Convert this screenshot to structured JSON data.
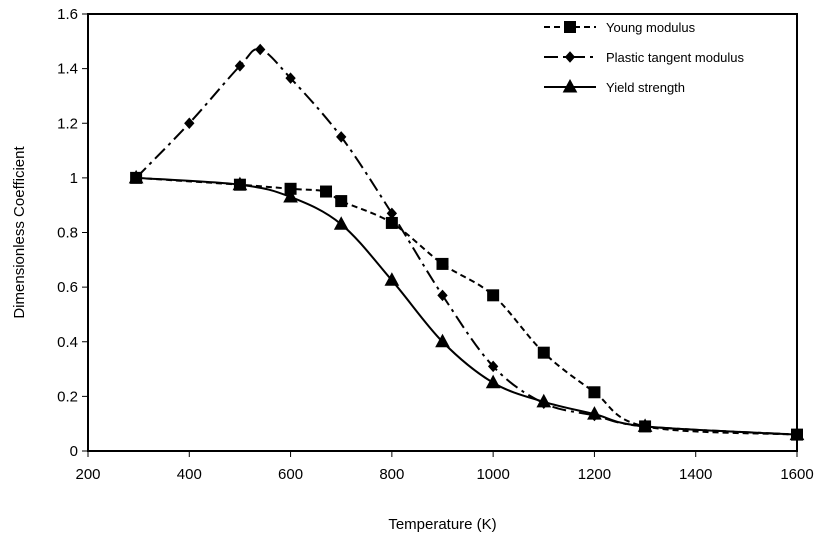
{
  "chart_data": {
    "type": "line",
    "xlabel": "Temperature (K)",
    "ylabel": "Dimensionless Coefficient",
    "xlim": [
      200,
      1600
    ],
    "ylim": [
      0,
      1.6
    ],
    "x_ticks": [
      "200",
      "400",
      "600",
      "800",
      "1000",
      "1200",
      "1400",
      "1600"
    ],
    "y_ticks": [
      "0",
      "0.2",
      "0.4",
      "0.6",
      "0.8",
      "1",
      "1.2",
      "1.4",
      "1.6"
    ],
    "grid": false,
    "legend_position": "top-right",
    "series": [
      {
        "name": "Young modulus",
        "marker": "square",
        "line_style": "dashed",
        "color": "#000000",
        "points": [
          [
            295,
            1.0
          ],
          [
            500,
            0.975
          ],
          [
            600,
            0.96
          ],
          [
            670,
            0.95
          ],
          [
            700,
            0.915
          ],
          [
            800,
            0.835
          ],
          [
            900,
            0.685
          ],
          [
            1000,
            0.57
          ],
          [
            1100,
            0.36
          ],
          [
            1200,
            0.215
          ],
          [
            1300,
            0.09
          ],
          [
            1600,
            0.06
          ]
        ]
      },
      {
        "name": "Plastic tangent modulus",
        "marker": "diamond",
        "line_style": "dash-dot",
        "color": "#000000",
        "points": [
          [
            295,
            1.0
          ],
          [
            400,
            1.2
          ],
          [
            500,
            1.41
          ],
          [
            540,
            1.47
          ],
          [
            600,
            1.365
          ],
          [
            700,
            1.15
          ],
          [
            800,
            0.87
          ],
          [
            900,
            0.57
          ],
          [
            1000,
            0.31
          ],
          [
            1100,
            0.175
          ],
          [
            1200,
            0.13
          ],
          [
            1300,
            0.09
          ],
          [
            1600,
            0.06
          ]
        ]
      },
      {
        "name": "Yield strength",
        "marker": "triangle",
        "line_style": "solid",
        "color": "#000000",
        "points": [
          [
            295,
            1.0
          ],
          [
            500,
            0.975
          ],
          [
            600,
            0.93
          ],
          [
            700,
            0.83
          ],
          [
            800,
            0.625
          ],
          [
            900,
            0.4
          ],
          [
            1000,
            0.25
          ],
          [
            1100,
            0.18
          ],
          [
            1200,
            0.135
          ],
          [
            1300,
            0.09
          ],
          [
            1600,
            0.06
          ]
        ]
      }
    ]
  }
}
